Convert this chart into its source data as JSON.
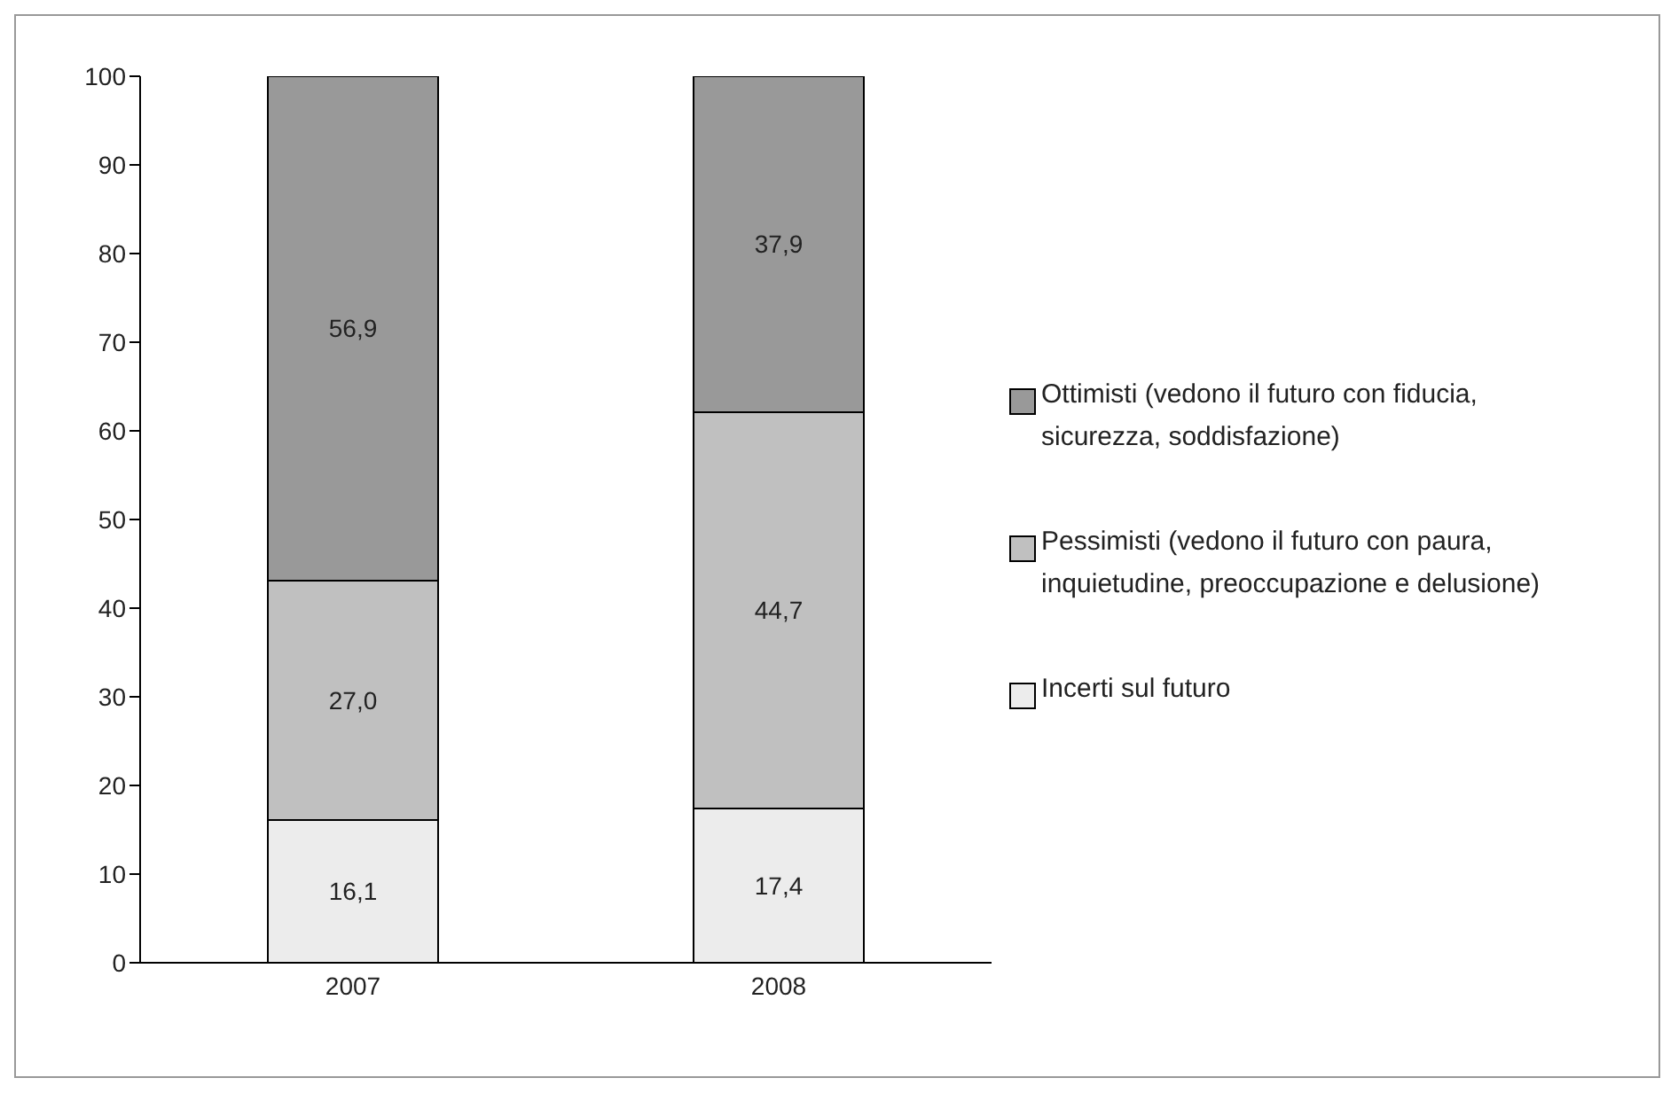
{
  "chart_data": {
    "type": "bar",
    "stacked": true,
    "categories": [
      "2007",
      "2008"
    ],
    "series": [
      {
        "name": "Incerti sul futuro",
        "color": "#ececec",
        "values": [
          16.1,
          17.4
        ],
        "value_labels": [
          "16,1",
          "17,4"
        ]
      },
      {
        "name": "Pessimisti (vedono il futuro con paura, inquietudine, preoccupazione e delusione)",
        "color": "#c0c0c0",
        "values": [
          27.0,
          44.7
        ],
        "value_labels": [
          "27,0",
          "44,7"
        ]
      },
      {
        "name": "Ottimisti (vedono il futuro con fiducia, sicurezza, soddisfazione)",
        "color": "#999999",
        "values": [
          56.9,
          37.9
        ],
        "value_labels": [
          "56,9",
          "37,9"
        ]
      }
    ],
    "ylim": [
      0,
      100
    ],
    "yticks": [
      0,
      10,
      20,
      30,
      40,
      50,
      60,
      70,
      80,
      90,
      100
    ],
    "grid": false,
    "legend": "right"
  }
}
